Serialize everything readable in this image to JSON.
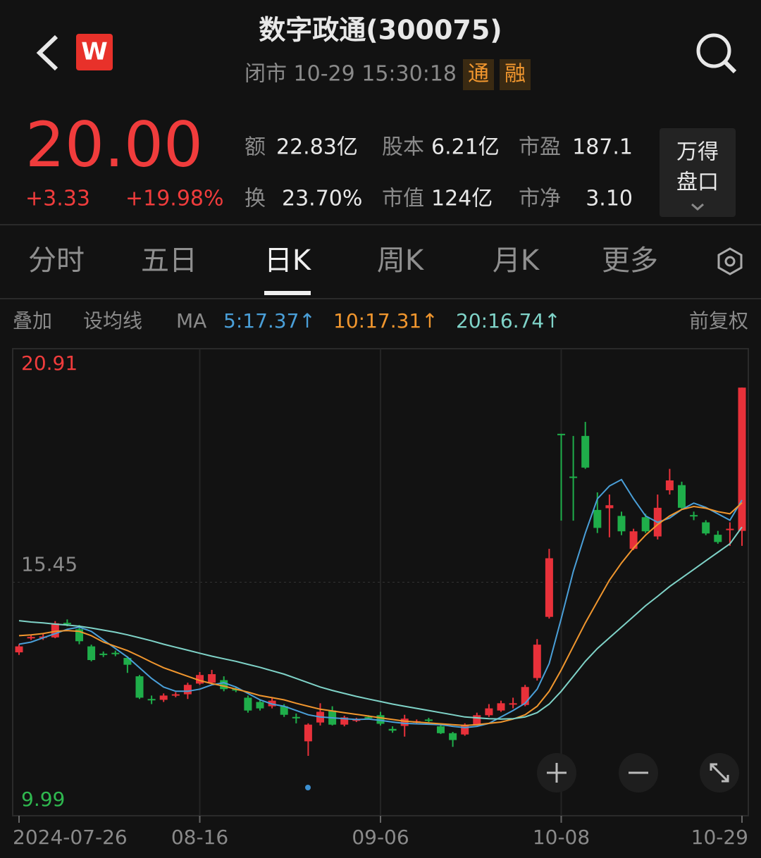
{
  "header": {
    "title": "数字政通(300075)",
    "status": "闭市 10-29 15:30:18",
    "badges": [
      "通",
      "融"
    ],
    "logo": "W"
  },
  "quote": {
    "price": "20.00",
    "change": "+3.33",
    "change_pct": "+19.98%",
    "stats": [
      {
        "label": "额",
        "value": "22.83亿"
      },
      {
        "label": "股本",
        "value": "6.21亿"
      },
      {
        "label": "市盈",
        "value": "187.1"
      },
      {
        "label": "换",
        "value": "23.70%"
      },
      {
        "label": "市值",
        "value": "124亿"
      },
      {
        "label": "市净",
        "value": "3.10"
      }
    ],
    "button": [
      "万得",
      "盘口"
    ]
  },
  "tabs": [
    "分时",
    "五日",
    "日K",
    "周K",
    "月K",
    "更多"
  ],
  "active_tab": 2,
  "toolbar": {
    "overlay": "叠加",
    "set_ma": "设均线",
    "ma": "MA",
    "adjust": "前复权"
  },
  "chart_data": {
    "type": "candlestick",
    "categories": [
      "2024-07-26",
      null,
      null,
      null,
      null,
      null,
      null,
      null,
      null,
      null,
      null,
      null,
      null,
      null,
      null,
      "08-16",
      null,
      null,
      null,
      null,
      null,
      null,
      null,
      null,
      null,
      null,
      null,
      null,
      null,
      null,
      "09-06",
      null,
      null,
      null,
      null,
      null,
      null,
      null,
      null,
      null,
      null,
      null,
      null,
      null,
      null,
      "10-08",
      null,
      null,
      null,
      null,
      null,
      null,
      null,
      null,
      null,
      null,
      null,
      null,
      null,
      null,
      "10-29"
    ],
    "open": [
      13.81,
      14.15,
      14.15,
      14.16,
      14.5,
      14.35,
      13.95,
      13.78,
      13.8,
      13.68,
      13.25,
      12.72,
      12.7,
      12.82,
      12.83,
      13.08,
      13.1,
      13.16,
      12.95,
      12.75,
      12.65,
      12.55,
      12.55,
      12.3,
      11.73,
      12.17,
      12.45,
      12.12,
      12.22,
      12.3,
      12.34,
      12.02,
      12.09,
      12.18,
      12.24,
      12.08,
      11.92,
      11.89,
      12.12,
      12.34,
      12.45,
      12.6,
      12.58,
      13.21,
      14.64,
      18.92,
      17.92,
      18.87,
      17.14,
      17.18,
      17.0,
      16.23,
      16.97,
      16.52,
      17.6,
      17.72,
      17.02,
      16.85,
      16.56,
      16.68,
      16.65
    ],
    "high": [
      14.0,
      14.22,
      14.24,
      14.54,
      14.58,
      14.45,
      13.99,
      13.83,
      13.85,
      13.72,
      13.28,
      12.8,
      12.85,
      12.88,
      13.1,
      13.35,
      13.4,
      13.25,
      13.0,
      12.8,
      12.7,
      12.75,
      12.6,
      12.38,
      12.15,
      12.62,
      12.55,
      12.33,
      12.28,
      12.34,
      12.42,
      12.08,
      12.35,
      12.24,
      12.28,
      12.12,
      11.95,
      12.15,
      12.4,
      12.6,
      12.68,
      12.75,
      13.05,
      14.12,
      16.23,
      18.92,
      18.87,
      19.2,
      17.55,
      17.5,
      17.1,
      16.7,
      17.05,
      17.5,
      18.1,
      17.8,
      17.1,
      16.9,
      16.65,
      16.85,
      20.0
    ],
    "low": [
      13.75,
      14.1,
      14.1,
      14.14,
      14.42,
      14.0,
      13.6,
      13.7,
      13.72,
      13.33,
      12.72,
      12.6,
      12.65,
      12.76,
      12.72,
      13.05,
      13.05,
      12.9,
      12.88,
      12.4,
      12.45,
      12.5,
      12.3,
      12.15,
      11.39,
      12.1,
      12.1,
      12.08,
      12.18,
      12.24,
      12.1,
      11.93,
      11.84,
      12.14,
      12.18,
      11.9,
      11.6,
      11.86,
      12.1,
      12.3,
      12.42,
      12.5,
      12.55,
      13.15,
      14.6,
      16.89,
      16.89,
      18.1,
      16.6,
      16.5,
      16.55,
      16.2,
      16.6,
      16.45,
      17.5,
      17.15,
      16.9,
      16.55,
      16.35,
      16.3,
      16.3
    ],
    "close": [
      13.95,
      14.17,
      14.18,
      14.49,
      14.48,
      14.07,
      13.63,
      13.76,
      13.77,
      13.52,
      12.75,
      12.7,
      12.8,
      12.83,
      13.05,
      13.28,
      13.3,
      12.95,
      12.94,
      12.45,
      12.5,
      12.68,
      12.35,
      12.28,
      12.12,
      12.42,
      12.12,
      12.29,
      12.24,
      12.28,
      12.14,
      11.98,
      12.26,
      12.2,
      12.22,
      11.92,
      11.76,
      12.12,
      12.34,
      12.5,
      12.62,
      12.62,
      13.0,
      13.99,
      16.01,
      18.9,
      17.9,
      18.13,
      16.72,
      17.25,
      16.64,
      16.64,
      16.64,
      17.19,
      17.83,
      17.19,
      17.0,
      16.59,
      16.39,
      16.7,
      20.0
    ],
    "up_color": "#e8313a",
    "down_color": "#1fae4a",
    "ylim": [
      9.99,
      20.91
    ],
    "yticks": [
      9.99,
      15.45,
      20.91
    ],
    "series": [
      {
        "name": "5",
        "label": "5:17.37↑",
        "color": "#4a9fd8",
        "values": [
          14.0,
          14.05,
          14.15,
          14.25,
          14.35,
          14.4,
          14.3,
          14.1,
          13.9,
          13.7,
          13.45,
          13.2,
          13.0,
          12.9,
          12.9,
          12.95,
          13.05,
          13.1,
          13.0,
          12.85,
          12.7,
          12.6,
          12.55,
          12.45,
          12.35,
          12.3,
          12.28,
          12.26,
          12.24,
          12.25,
          12.22,
          12.18,
          12.15,
          12.14,
          12.13,
          12.12,
          12.08,
          12.05,
          12.08,
          12.15,
          12.3,
          12.45,
          12.62,
          12.95,
          13.55,
          14.6,
          15.7,
          16.6,
          17.4,
          17.7,
          17.85,
          17.4,
          17.0,
          16.85,
          16.95,
          17.15,
          17.3,
          17.2,
          17.05,
          16.9,
          17.37
        ]
      },
      {
        "name": "10",
        "label": "10:17.31↑",
        "color": "#f0962e",
        "values": [
          14.2,
          14.22,
          14.25,
          14.3,
          14.32,
          14.3,
          14.2,
          14.05,
          13.95,
          13.85,
          13.72,
          13.58,
          13.45,
          13.35,
          13.25,
          13.15,
          13.08,
          13.02,
          12.95,
          12.88,
          12.8,
          12.75,
          12.7,
          12.62,
          12.55,
          12.48,
          12.44,
          12.4,
          12.36,
          12.32,
          12.28,
          12.24,
          12.2,
          12.18,
          12.16,
          12.14,
          12.12,
          12.1,
          12.12,
          12.15,
          12.18,
          12.25,
          12.35,
          12.55,
          12.9,
          13.4,
          13.95,
          14.5,
          15.0,
          15.5,
          15.9,
          16.25,
          16.55,
          16.8,
          17.0,
          17.15,
          17.22,
          17.18,
          17.1,
          17.05,
          17.31
        ]
      },
      {
        "name": "20",
        "label": "20:16.74↑",
        "color": "#7fd3c8",
        "values": [
          14.55,
          14.52,
          14.5,
          14.47,
          14.45,
          14.42,
          14.38,
          14.33,
          14.28,
          14.22,
          14.15,
          14.08,
          14.0,
          13.93,
          13.86,
          13.79,
          13.72,
          13.66,
          13.6,
          13.53,
          13.46,
          13.38,
          13.3,
          13.2,
          13.1,
          13.0,
          12.92,
          12.85,
          12.78,
          12.72,
          12.66,
          12.6,
          12.55,
          12.5,
          12.45,
          12.4,
          12.35,
          12.3,
          12.28,
          12.26,
          12.25,
          12.26,
          12.3,
          12.4,
          12.6,
          12.9,
          13.25,
          13.6,
          13.9,
          14.15,
          14.4,
          14.65,
          14.9,
          15.12,
          15.35,
          15.55,
          15.75,
          15.95,
          16.15,
          16.35,
          16.74
        ]
      }
    ]
  }
}
